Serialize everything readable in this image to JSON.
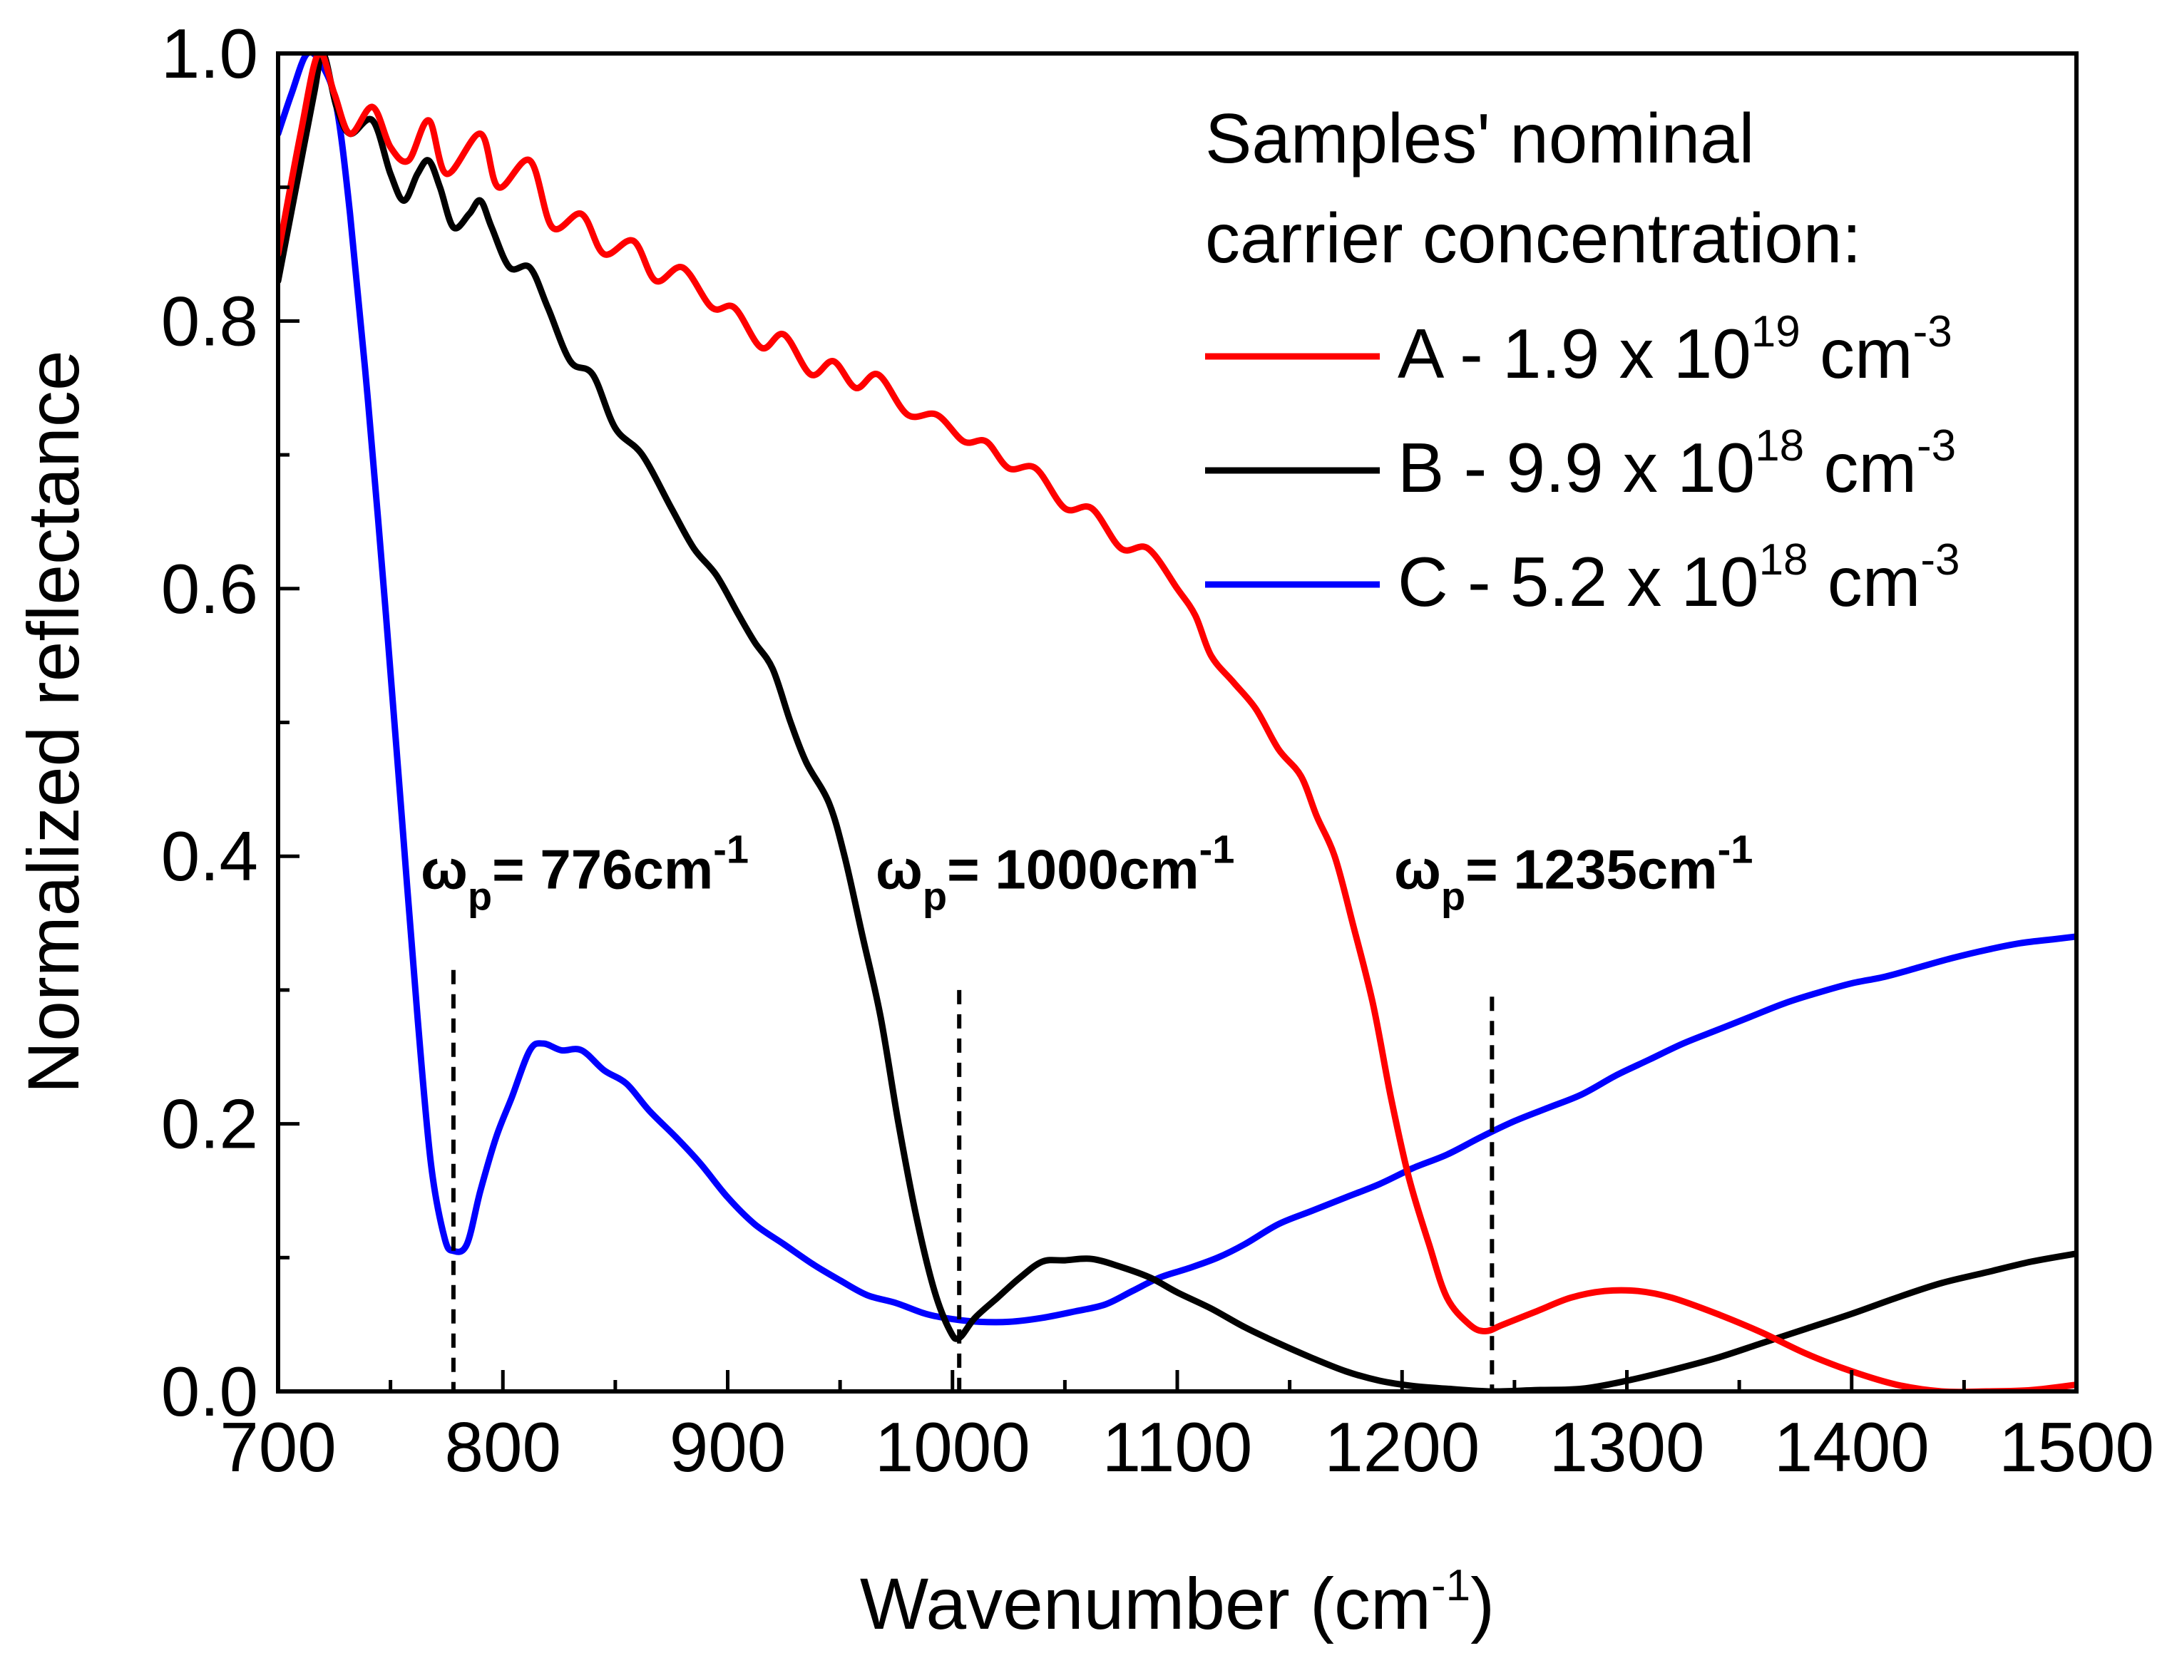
{
  "chart_data": {
    "type": "line",
    "xlabel": "Wavenumber (cm",
    "xlabel_sup": "-1",
    "xlabel_suffix": ")",
    "ylabel": "Normalized reflectance",
    "xlim": [
      700,
      1500
    ],
    "ylim": [
      0.0,
      1.0
    ],
    "xticks": [
      700,
      800,
      900,
      1000,
      1100,
      1200,
      1300,
      1400,
      1500
    ],
    "yticks": [
      0.0,
      0.2,
      0.4,
      0.6,
      0.8,
      1.0
    ],
    "xtick_labels": [
      "700",
      "800",
      "900",
      "1000",
      "1100",
      "1200",
      "1300",
      "1400",
      "1500"
    ],
    "ytick_labels": [
      "0.0",
      "0.2",
      "0.4",
      "0.6",
      "0.8",
      "1.0"
    ],
    "legend": {
      "title_line1": "Samples' nominal",
      "title_line2": "carrier concentration:",
      "placement": "top-right"
    },
    "series": [
      {
        "name": "A - 1.9 x 10",
        "exp": "19",
        "unit": " cm",
        "unit_sup": "-3",
        "color": "#ff0000",
        "points": [
          [
            700,
            0.85
          ],
          [
            710,
            0.94
          ],
          [
            718,
            1.0
          ],
          [
            725,
            0.97
          ],
          [
            732,
            0.94
          ],
          [
            742,
            0.96
          ],
          [
            750,
            0.93
          ],
          [
            758,
            0.92
          ],
          [
            767,
            0.95
          ],
          [
            775,
            0.91
          ],
          [
            790,
            0.94
          ],
          [
            798,
            0.9
          ],
          [
            812,
            0.92
          ],
          [
            822,
            0.87
          ],
          [
            835,
            0.88
          ],
          [
            845,
            0.85
          ],
          [
            858,
            0.86
          ],
          [
            868,
            0.83
          ],
          [
            880,
            0.84
          ],
          [
            893,
            0.81
          ],
          [
            903,
            0.81
          ],
          [
            915,
            0.78
          ],
          [
            925,
            0.79
          ],
          [
            937,
            0.76
          ],
          [
            947,
            0.77
          ],
          [
            957,
            0.75
          ],
          [
            967,
            0.76
          ],
          [
            980,
            0.73
          ],
          [
            993,
            0.73
          ],
          [
            1005,
            0.71
          ],
          [
            1015,
            0.71
          ],
          [
            1025,
            0.69
          ],
          [
            1037,
            0.69
          ],
          [
            1050,
            0.66
          ],
          [
            1062,
            0.66
          ],
          [
            1075,
            0.63
          ],
          [
            1087,
            0.63
          ],
          [
            1100,
            0.6
          ],
          [
            1108,
            0.58
          ],
          [
            1115,
            0.55
          ],
          [
            1125,
            0.53
          ],
          [
            1135,
            0.51
          ],
          [
            1145,
            0.48
          ],
          [
            1155,
            0.46
          ],
          [
            1162,
            0.43
          ],
          [
            1170,
            0.4
          ],
          [
            1178,
            0.35
          ],
          [
            1187,
            0.29
          ],
          [
            1195,
            0.22
          ],
          [
            1203,
            0.16
          ],
          [
            1212,
            0.11
          ],
          [
            1220,
            0.07
          ],
          [
            1230,
            0.05
          ],
          [
            1237,
            0.045
          ],
          [
            1245,
            0.05
          ],
          [
            1260,
            0.06
          ],
          [
            1275,
            0.07
          ],
          [
            1290,
            0.075
          ],
          [
            1305,
            0.075
          ],
          [
            1320,
            0.07
          ],
          [
            1340,
            0.058
          ],
          [
            1360,
            0.044
          ],
          [
            1380,
            0.028
          ],
          [
            1400,
            0.015
          ],
          [
            1420,
            0.005
          ],
          [
            1440,
            0.0
          ],
          [
            1460,
            0.0
          ],
          [
            1480,
            0.001
          ],
          [
            1500,
            0.005
          ]
        ]
      },
      {
        "name": "B - 9.9 x 10",
        "exp": "18",
        "unit": " cm",
        "unit_sup": "-3",
        "color": "#000000",
        "points": [
          [
            700,
            0.83
          ],
          [
            708,
            0.9
          ],
          [
            716,
            0.97
          ],
          [
            720,
            1.0
          ],
          [
            726,
            0.96
          ],
          [
            732,
            0.94
          ],
          [
            742,
            0.95
          ],
          [
            750,
            0.91
          ],
          [
            756,
            0.89
          ],
          [
            762,
            0.91
          ],
          [
            767,
            0.92
          ],
          [
            772,
            0.9
          ],
          [
            778,
            0.87
          ],
          [
            785,
            0.88
          ],
          [
            790,
            0.89
          ],
          [
            795,
            0.87
          ],
          [
            803,
            0.84
          ],
          [
            812,
            0.84
          ],
          [
            820,
            0.81
          ],
          [
            830,
            0.77
          ],
          [
            840,
            0.76
          ],
          [
            850,
            0.72
          ],
          [
            862,
            0.7
          ],
          [
            875,
            0.66
          ],
          [
            885,
            0.63
          ],
          [
            895,
            0.61
          ],
          [
            905,
            0.58
          ],
          [
            912,
            0.56
          ],
          [
            920,
            0.54
          ],
          [
            928,
            0.5
          ],
          [
            935,
            0.47
          ],
          [
            945,
            0.44
          ],
          [
            952,
            0.4
          ],
          [
            960,
            0.34
          ],
          [
            968,
            0.28
          ],
          [
            976,
            0.2
          ],
          [
            984,
            0.13
          ],
          [
            992,
            0.075
          ],
          [
            999,
            0.045
          ],
          [
            1003,
            0.04
          ],
          [
            1010,
            0.055
          ],
          [
            1020,
            0.07
          ],
          [
            1030,
            0.085
          ],
          [
            1040,
            0.097
          ],
          [
            1050,
            0.098
          ],
          [
            1062,
            0.099
          ],
          [
            1075,
            0.093
          ],
          [
            1088,
            0.085
          ],
          [
            1100,
            0.074
          ],
          [
            1115,
            0.062
          ],
          [
            1130,
            0.048
          ],
          [
            1145,
            0.036
          ],
          [
            1160,
            0.025
          ],
          [
            1175,
            0.015
          ],
          [
            1190,
            0.008
          ],
          [
            1205,
            0.004
          ],
          [
            1220,
            0.002
          ],
          [
            1240,
            0.0
          ],
          [
            1260,
            0.001
          ],
          [
            1280,
            0.002
          ],
          [
            1300,
            0.008
          ],
          [
            1320,
            0.016
          ],
          [
            1340,
            0.025
          ],
          [
            1360,
            0.036
          ],
          [
            1380,
            0.047
          ],
          [
            1400,
            0.058
          ],
          [
            1420,
            0.07
          ],
          [
            1440,
            0.081
          ],
          [
            1460,
            0.089
          ],
          [
            1480,
            0.097
          ],
          [
            1500,
            0.103
          ]
        ]
      },
      {
        "name": "C - 5.2 x 10",
        "exp": "18",
        "unit": " cm",
        "unit_sup": "-3",
        "color": "#0000ff",
        "points": [
          [
            700,
            0.94
          ],
          [
            706,
            0.97
          ],
          [
            713,
            1.0
          ],
          [
            720,
            0.99
          ],
          [
            726,
            0.96
          ],
          [
            732,
            0.88
          ],
          [
            740,
            0.74
          ],
          [
            748,
            0.58
          ],
          [
            755,
            0.43
          ],
          [
            762,
            0.28
          ],
          [
            768,
            0.17
          ],
          [
            774,
            0.115
          ],
          [
            778,
            0.105
          ],
          [
            784,
            0.11
          ],
          [
            790,
            0.15
          ],
          [
            797,
            0.19
          ],
          [
            804,
            0.22
          ],
          [
            812,
            0.255
          ],
          [
            818,
            0.26
          ],
          [
            826,
            0.255
          ],
          [
            835,
            0.255
          ],
          [
            845,
            0.24
          ],
          [
            855,
            0.23
          ],
          [
            865,
            0.21
          ],
          [
            877,
            0.19
          ],
          [
            888,
            0.17
          ],
          [
            900,
            0.145
          ],
          [
            912,
            0.125
          ],
          [
            925,
            0.11
          ],
          [
            938,
            0.095
          ],
          [
            950,
            0.083
          ],
          [
            962,
            0.072
          ],
          [
            975,
            0.066
          ],
          [
            988,
            0.058
          ],
          [
            1000,
            0.054
          ],
          [
            1012,
            0.052
          ],
          [
            1025,
            0.052
          ],
          [
            1040,
            0.055
          ],
          [
            1055,
            0.06
          ],
          [
            1068,
            0.065
          ],
          [
            1080,
            0.075
          ],
          [
            1092,
            0.085
          ],
          [
            1105,
            0.092
          ],
          [
            1118,
            0.1
          ],
          [
            1130,
            0.11
          ],
          [
            1145,
            0.125
          ],
          [
            1160,
            0.135
          ],
          [
            1175,
            0.145
          ],
          [
            1190,
            0.155
          ],
          [
            1205,
            0.167
          ],
          [
            1220,
            0.177
          ],
          [
            1235,
            0.19
          ],
          [
            1250,
            0.202
          ],
          [
            1265,
            0.212
          ],
          [
            1280,
            0.222
          ],
          [
            1295,
            0.236
          ],
          [
            1310,
            0.248
          ],
          [
            1325,
            0.26
          ],
          [
            1340,
            0.27
          ],
          [
            1355,
            0.28
          ],
          [
            1370,
            0.29
          ],
          [
            1385,
            0.298
          ],
          [
            1400,
            0.305
          ],
          [
            1415,
            0.31
          ],
          [
            1430,
            0.317
          ],
          [
            1445,
            0.324
          ],
          [
            1460,
            0.33
          ],
          [
            1475,
            0.335
          ],
          [
            1490,
            0.338
          ],
          [
            1500,
            0.34
          ]
        ]
      }
    ],
    "annotations": [
      {
        "label": "ω",
        "sub": "p",
        "text": "= 776cm",
        "sup": "-1",
        "x": 778,
        "label_y": 0.36,
        "line_y_top": 0.315,
        "line_y_bottom": 0.0
      },
      {
        "label": "ω",
        "sub": "p",
        "text": "= 1000cm",
        "sup": "-1",
        "x": 1003,
        "label_y": 0.36,
        "line_y_top": 0.3,
        "line_y_bottom": 0.0
      },
      {
        "label": "ω",
        "sub": "p",
        "text": "= 1235cm",
        "sup": "-1",
        "x": 1240,
        "label_y": 0.36,
        "line_y_top": 0.295,
        "line_y_bottom": 0.0
      }
    ]
  }
}
